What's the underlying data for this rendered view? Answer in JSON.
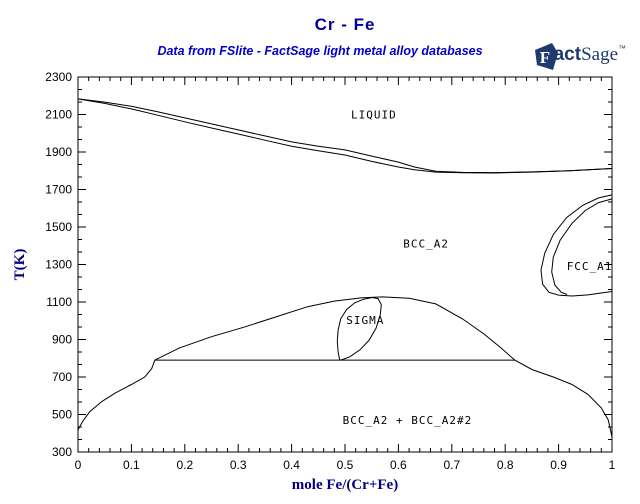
{
  "header": {
    "title": "Cr - Fe",
    "subtitle": "Data from FSlite - FactSage light metal alloy databases"
  },
  "logo": {
    "mark_letter": "F",
    "fact": "act",
    "sage": "Sage",
    "tm": "™"
  },
  "colors": {
    "title": "#000099",
    "subtitle": "#0000cc",
    "axis_label": "#000080",
    "curve": "#000000",
    "logo": "#203a70",
    "background": "#ffffff"
  },
  "chart_data": {
    "type": "line",
    "title": "Cr - Fe",
    "subtitle": "Data from FSlite - FactSage light metal alloy databases",
    "xlabel": "mole Fe/(Cr+Fe)",
    "ylabel": "T(K)",
    "xlim": [
      0,
      1
    ],
    "ylim": [
      300,
      2300
    ],
    "x_ticks": [
      0,
      0.1,
      0.2,
      0.3,
      0.4,
      0.5,
      0.6,
      0.7,
      0.8,
      0.9,
      1
    ],
    "y_ticks": [
      300,
      500,
      700,
      900,
      1100,
      1300,
      1500,
      1700,
      1900,
      2100,
      2300
    ],
    "x_minor_divisions": 5,
    "y_minor_divisions": 3,
    "grid": false,
    "legend": "none",
    "series": [
      {
        "name": "liquidus",
        "x": [
          0,
          0.05,
          0.1,
          0.15,
          0.2,
          0.25,
          0.3,
          0.35,
          0.4,
          0.45,
          0.5,
          0.55,
          0.6,
          0.63,
          0.67,
          0.72,
          0.78,
          0.85,
          0.92,
          1.0
        ],
        "y": [
          2183,
          2166,
          2144,
          2114,
          2082,
          2050,
          2018,
          1986,
          1954,
          1931,
          1911,
          1878,
          1846,
          1820,
          1797,
          1791,
          1790,
          1794,
          1800,
          1812
        ]
      },
      {
        "name": "solidus",
        "x": [
          0,
          0.05,
          0.1,
          0.15,
          0.2,
          0.25,
          0.3,
          0.35,
          0.4,
          0.45,
          0.5,
          0.55,
          0.6,
          0.63,
          0.67,
          0.72,
          0.78,
          0.85,
          0.92,
          1.0
        ],
        "y": [
          2183,
          2159,
          2130,
          2096,
          2061,
          2028,
          1996,
          1963,
          1931,
          1907,
          1884,
          1850,
          1820,
          1805,
          1793,
          1789,
          1788,
          1793,
          1800,
          1812
        ]
      },
      {
        "name": "bcc_miscibility_gap",
        "x": [
          0,
          0.008,
          0.022,
          0.045,
          0.07,
          0.1,
          0.125,
          0.138,
          0.144,
          0.19,
          0.25,
          0.31,
          0.37,
          0.43,
          0.48,
          0.53,
          0.57,
          0.62,
          0.67,
          0.72,
          0.76,
          0.79,
          0.818,
          0.85,
          0.89,
          0.925,
          0.955,
          0.98,
          0.993,
          1.0
        ],
        "y": [
          418,
          460,
          515,
          570,
          615,
          660,
          700,
          745,
          790,
          855,
          915,
          965,
          1020,
          1075,
          1105,
          1122,
          1127,
          1120,
          1090,
          1010,
          930,
          860,
          790,
          740,
          700,
          660,
          607,
          535,
          470,
          380
        ]
      },
      {
        "name": "sigma_loop",
        "x": [
          0.49,
          0.487,
          0.4855,
          0.487,
          0.492,
          0.503,
          0.518,
          0.535,
          0.551,
          0.562,
          0.568,
          0.566,
          0.558,
          0.545,
          0.528,
          0.509,
          0.495,
          0.49
        ],
        "y": [
          790,
          835,
          890,
          950,
          1010,
          1060,
          1095,
          1115,
          1124,
          1118,
          1085,
          1030,
          960,
          895,
          845,
          808,
          793,
          790
        ]
      },
      {
        "name": "fcc_gamma_loop_outer",
        "x": [
          1.0,
          0.975,
          0.945,
          0.915,
          0.89,
          0.874,
          0.867,
          0.87,
          0.882,
          0.9,
          0.925,
          0.955,
          1.0
        ],
        "y": [
          1671,
          1655,
          1615,
          1550,
          1460,
          1360,
          1270,
          1195,
          1152,
          1137,
          1132,
          1138,
          1156
        ]
      },
      {
        "name": "fcc_gamma_loop_inner",
        "x": [
          1.0,
          0.975,
          0.95,
          0.925,
          0.903,
          0.89,
          0.887,
          0.893,
          0.905,
          0.916
        ],
        "y": [
          1650,
          1630,
          1588,
          1520,
          1430,
          1340,
          1260,
          1190,
          1152,
          1140
        ]
      },
      {
        "name": "eutectoid_tie_line",
        "x": [
          0.144,
          0.818
        ],
        "y": [
          790,
          790
        ]
      }
    ],
    "annotations": [
      {
        "text": "LIQUID",
        "x": 0.554,
        "y": 2100
      },
      {
        "text": "BCC_A2",
        "x": 0.652,
        "y": 1412
      },
      {
        "text": "FCC_A1",
        "x": 0.958,
        "y": 1292
      },
      {
        "text": "SIGMA",
        "x": 0.538,
        "y": 1005
      },
      {
        "text": "BCC_A2 + BCC_A2#2",
        "x": 0.617,
        "y": 472
      }
    ]
  }
}
